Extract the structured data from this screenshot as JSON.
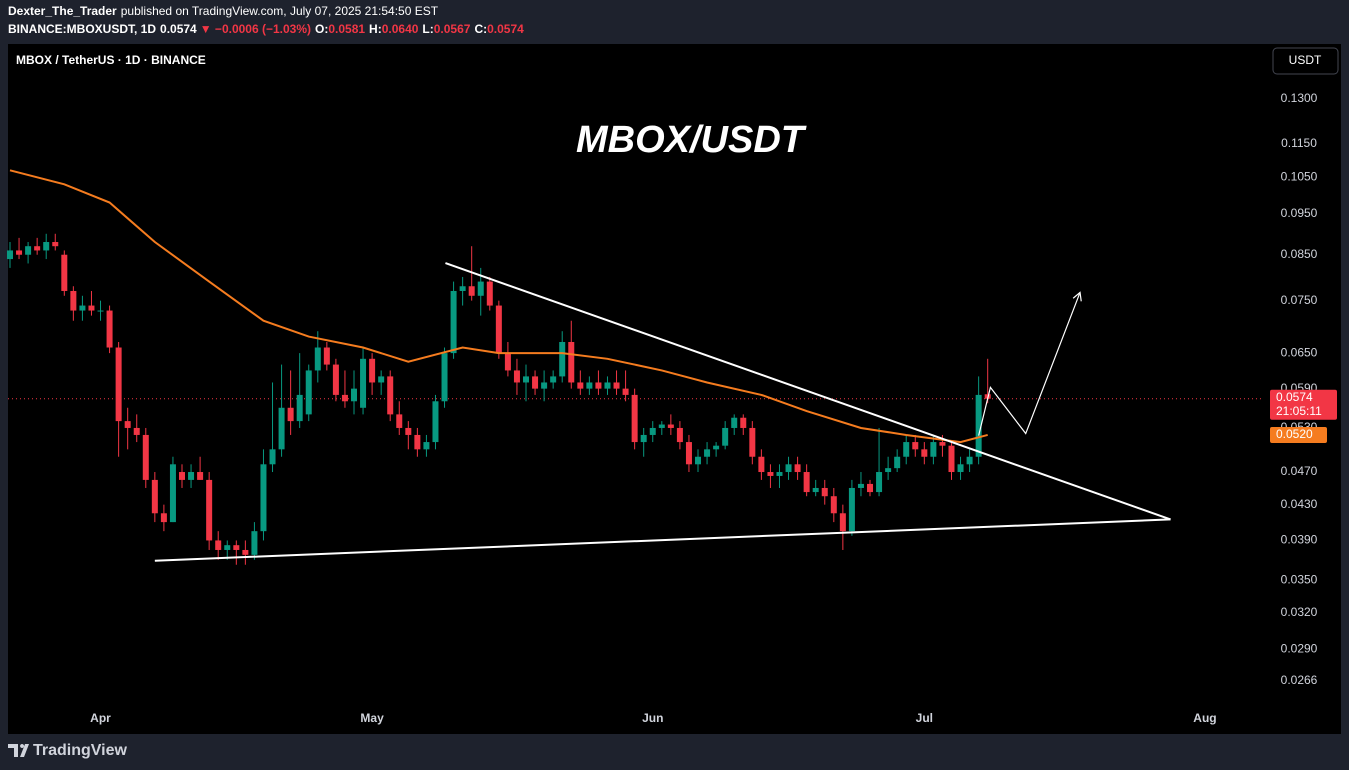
{
  "header": {
    "author": "Dexter_The_Trader",
    "published": "published on TradingView.com, July 07, 2025 21:54:50 EST",
    "symbol": "BINANCE:MBOXUSDT, 1D",
    "last": "0.0574",
    "change": "▼ −0.0006 (−1.03%)",
    "ohlc": [
      {
        "label": "O:",
        "value": "0.0581"
      },
      {
        "label": "H:",
        "value": "0.0640"
      },
      {
        "label": "L:",
        "value": "0.0567"
      },
      {
        "label": "C:",
        "value": "0.0574"
      }
    ]
  },
  "footer": {
    "brand": "TradingView"
  },
  "chart_data": {
    "type": "candlestick",
    "title": "MBOX/USDT",
    "symbol_label": "MBOX / TetherUS · 1D · BINANCE",
    "currency": "USDT",
    "log_scale": true,
    "up_color": "#089981",
    "down_color": "#f23645",
    "xlim": [
      -0.22,
      138.3
    ],
    "ylim": [
      0.0249,
      0.151
    ],
    "xticks": [
      {
        "value": 10,
        "label": "Apr"
      },
      {
        "value": 40,
        "label": "May"
      },
      {
        "value": 71,
        "label": "Jun"
      },
      {
        "value": 101,
        "label": "Jul"
      },
      {
        "value": 132,
        "label": "Aug"
      }
    ],
    "yticks": [
      {
        "value": 0.13,
        "label": "0.1300"
      },
      {
        "value": 0.115,
        "label": "0.1150"
      },
      {
        "value": 0.105,
        "label": "0.1050"
      },
      {
        "value": 0.095,
        "label": "0.0950"
      },
      {
        "value": 0.085,
        "label": "0.0850"
      },
      {
        "value": 0.075,
        "label": "0.0750"
      },
      {
        "value": 0.065,
        "label": "0.0650"
      },
      {
        "value": 0.059,
        "label": "0.0590"
      },
      {
        "value": 0.053,
        "label": "0.0530"
      },
      {
        "value": 0.047,
        "label": "0.0470"
      },
      {
        "value": 0.043,
        "label": "0.0430"
      },
      {
        "value": 0.039,
        "label": "0.0390"
      },
      {
        "value": 0.035,
        "label": "0.0350"
      },
      {
        "value": 0.032,
        "label": "0.0320"
      },
      {
        "value": 0.029,
        "label": "0.0290"
      },
      0.0266
    ],
    "open": [
      0.084,
      0.086,
      0.085,
      0.087,
      0.086,
      0.088,
      0.085,
      0.077,
      0.073,
      0.074,
      0.073,
      0.073,
      0.066,
      0.054,
      0.053,
      0.052,
      0.046,
      0.042,
      0.041,
      0.047,
      0.046,
      0.047,
      0.046,
      0.039,
      0.038,
      0.0385,
      0.038,
      0.0375,
      0.04,
      0.048,
      0.05,
      0.056,
      0.054,
      0.055,
      0.062,
      0.066,
      0.063,
      0.058,
      0.057,
      0.056,
      0.064,
      0.06,
      0.061,
      0.055,
      0.053,
      0.052,
      0.05,
      0.051,
      0.057,
      0.065,
      0.077,
      0.078,
      0.076,
      0.079,
      0.074,
      0.065,
      0.062,
      0.06,
      0.061,
      0.059,
      0.06,
      0.061,
      0.067,
      0.06,
      0.059,
      0.06,
      0.059,
      0.06,
      0.059,
      0.058,
      0.051,
      0.052,
      0.053,
      0.0535,
      0.053,
      0.051,
      0.048,
      0.049,
      0.05,
      0.0505,
      0.053,
      0.0545,
      0.053,
      0.049,
      0.047,
      0.0465,
      0.047,
      0.048,
      0.047,
      0.0445,
      0.045,
      0.044,
      0.042,
      0.04,
      0.045,
      0.0455,
      0.0445,
      0.047,
      0.0475,
      0.049,
      0.051,
      0.05,
      0.049,
      0.051,
      0.0505,
      0.047,
      0.048,
      0.049,
      0.0581
    ],
    "high": [
      0.088,
      0.089,
      0.088,
      0.089,
      0.09,
      0.09,
      0.086,
      0.078,
      0.076,
      0.077,
      0.075,
      0.074,
      0.067,
      0.056,
      0.055,
      0.053,
      0.047,
      0.043,
      0.049,
      0.048,
      0.048,
      0.049,
      0.047,
      0.04,
      0.039,
      0.039,
      0.039,
      0.041,
      0.05,
      0.06,
      0.063,
      0.062,
      0.065,
      0.063,
      0.069,
      0.067,
      0.064,
      0.062,
      0.062,
      0.066,
      0.065,
      0.062,
      0.062,
      0.057,
      0.054,
      0.053,
      0.052,
      0.058,
      0.066,
      0.079,
      0.08,
      0.087,
      0.082,
      0.08,
      0.075,
      0.067,
      0.064,
      0.063,
      0.062,
      0.062,
      0.062,
      0.069,
      0.071,
      0.062,
      0.061,
      0.062,
      0.061,
      0.062,
      0.062,
      0.059,
      0.053,
      0.054,
      0.054,
      0.055,
      0.054,
      0.052,
      0.05,
      0.051,
      0.051,
      0.054,
      0.055,
      0.055,
      0.054,
      0.05,
      0.048,
      0.048,
      0.049,
      0.049,
      0.048,
      0.046,
      0.046,
      0.045,
      0.043,
      0.046,
      0.047,
      0.046,
      0.053,
      0.049,
      0.05,
      0.052,
      0.052,
      0.051,
      0.052,
      0.052,
      0.051,
      0.049,
      0.05,
      0.061,
      0.064
    ],
    "low": [
      0.082,
      0.084,
      0.083,
      0.085,
      0.084,
      0.086,
      0.076,
      0.071,
      0.071,
      0.072,
      0.071,
      0.065,
      0.049,
      0.05,
      0.051,
      0.045,
      0.041,
      0.04,
      0.041,
      0.045,
      0.045,
      0.046,
      0.038,
      0.037,
      0.037,
      0.0365,
      0.0365,
      0.037,
      0.039,
      0.047,
      0.049,
      0.052,
      0.053,
      0.054,
      0.06,
      0.062,
      0.057,
      0.056,
      0.055,
      0.055,
      0.058,
      0.058,
      0.054,
      0.052,
      0.05,
      0.049,
      0.049,
      0.05,
      0.056,
      0.064,
      0.074,
      0.075,
      0.072,
      0.073,
      0.064,
      0.061,
      0.058,
      0.057,
      0.058,
      0.057,
      0.059,
      0.06,
      0.059,
      0.058,
      0.058,
      0.058,
      0.058,
      0.058,
      0.057,
      0.05,
      0.049,
      0.051,
      0.052,
      0.052,
      0.05,
      0.047,
      0.047,
      0.048,
      0.049,
      0.05,
      0.052,
      0.052,
      0.048,
      0.046,
      0.045,
      0.045,
      0.046,
      0.046,
      0.044,
      0.044,
      0.043,
      0.041,
      0.038,
      0.0395,
      0.044,
      0.044,
      0.044,
      0.046,
      0.047,
      0.048,
      0.049,
      0.048,
      0.048,
      0.049,
      0.046,
      0.046,
      0.047,
      0.048,
      0.0567
    ],
    "close": [
      0.086,
      0.085,
      0.087,
      0.086,
      0.088,
      0.087,
      0.077,
      0.073,
      0.074,
      0.073,
      0.073,
      0.066,
      0.054,
      0.053,
      0.052,
      0.046,
      0.042,
      0.041,
      0.048,
      0.046,
      0.047,
      0.046,
      0.039,
      0.038,
      0.0385,
      0.038,
      0.0375,
      0.04,
      0.048,
      0.05,
      0.056,
      0.054,
      0.058,
      0.062,
      0.066,
      0.063,
      0.058,
      0.057,
      0.059,
      0.064,
      0.06,
      0.061,
      0.055,
      0.053,
      0.052,
      0.05,
      0.051,
      0.057,
      0.065,
      0.077,
      0.078,
      0.076,
      0.079,
      0.074,
      0.065,
      0.062,
      0.06,
      0.061,
      0.059,
      0.06,
      0.061,
      0.067,
      0.06,
      0.059,
      0.06,
      0.059,
      0.06,
      0.059,
      0.058,
      0.051,
      0.052,
      0.053,
      0.0535,
      0.053,
      0.051,
      0.048,
      0.049,
      0.05,
      0.0505,
      0.053,
      0.0545,
      0.053,
      0.049,
      0.047,
      0.0465,
      0.047,
      0.048,
      0.047,
      0.0445,
      0.045,
      0.044,
      0.042,
      0.04,
      0.045,
      0.0455,
      0.0445,
      0.047,
      0.0475,
      0.049,
      0.051,
      0.05,
      0.049,
      0.051,
      0.0505,
      0.047,
      0.048,
      0.049,
      0.058,
      0.0574
    ],
    "ma": {
      "color": "#f57c1f",
      "x": [
        0,
        6,
        11,
        16,
        22,
        28,
        33,
        39,
        44,
        50,
        54,
        61,
        66,
        72,
        77,
        83,
        88,
        94,
        99,
        105,
        108
      ],
      "values": [
        0.107,
        0.103,
        0.098,
        0.088,
        0.079,
        0.071,
        0.068,
        0.066,
        0.0635,
        0.066,
        0.065,
        0.065,
        0.064,
        0.062,
        0.06,
        0.058,
        0.0555,
        0.053,
        0.052,
        0.051,
        0.052
      ]
    },
    "trendlines": [
      {
        "color": "#ffffff",
        "x": [
          48.1,
          128.2
        ],
        "values": [
          0.0831,
          0.0413
        ]
      },
      {
        "color": "#ffffff",
        "x": [
          16.0,
          128.2
        ],
        "values": [
          0.0369,
          0.0413
        ]
      }
    ],
    "projection": {
      "color": "#ffffff",
      "x": [
        107,
        108.3,
        112.2,
        118.2
      ],
      "values": [
        0.0519,
        0.0592,
        0.0522,
        0.0767
      ]
    },
    "last_price": 0.0574,
    "countdown": "21:05:11",
    "ma_last": {
      "value": 0.052,
      "label": "0.0520"
    }
  }
}
